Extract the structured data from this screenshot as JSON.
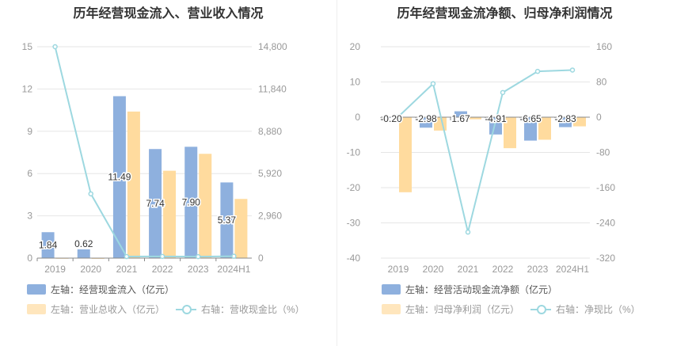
{
  "charts": [
    {
      "title": "历年经营现金流入、营业收入情况",
      "legend": {
        "bar1": "左轴：经营现金流入（亿元）",
        "bar2": "左轴：营业总收入（亿元）",
        "line": "右轴：营收现金比（%）"
      }
    },
    {
      "title": "历年经营现金流净额、归母净利润情况",
      "legend": {
        "bar1": "左轴：经营活动现金流净额（亿元）",
        "bar2": "左轴：归母净利润（亿元）",
        "line": "右轴：净现比（%）"
      }
    }
  ],
  "colors": {
    "bar1": "#8eb0de",
    "bar2": "#ffdb9e",
    "line": "#9dd8e0",
    "axis": "#999999",
    "grid": "#e6e6e6"
  },
  "chart_data": [
    {
      "type": "bar",
      "categories": [
        "2019",
        "2020",
        "2021",
        "2022",
        "2023",
        "2024H1"
      ],
      "series": [
        {
          "name": "左轴：经营现金流入（亿元）",
          "axis": "left",
          "values": [
            1.84,
            0.62,
            11.49,
            7.74,
            7.9,
            5.37
          ],
          "labels": [
            "1.84",
            "0.62",
            "11.49",
            "7.74",
            "7.90",
            "5.37"
          ]
        },
        {
          "name": "左轴：营业总收入（亿元）",
          "axis": "left",
          "values": [
            0.01,
            0.0045,
            10.4,
            6.2,
            7.4,
            4.2
          ]
        },
        {
          "name": "右轴：营收现金比（%）",
          "axis": "right",
          "type": "line",
          "values": [
            14800,
            4500,
            110,
            120,
            105,
            130
          ]
        }
      ],
      "ylim_left": [
        0,
        15
      ],
      "yticks_left": [
        "0",
        "3",
        "6",
        "9",
        "12",
        "15"
      ],
      "ylim_right": [
        0,
        14800
      ],
      "yticks_right": [
        "0",
        "2,960",
        "5,920",
        "8,880",
        "11,840",
        "14,800"
      ],
      "grid": true,
      "legend": "bottom"
    },
    {
      "type": "bar",
      "categories": [
        "2019",
        "2020",
        "2021",
        "2022",
        "2023",
        "2024H1"
      ],
      "series": [
        {
          "name": "左轴：经营活动现金流净额（亿元）",
          "axis": "left",
          "values": [
            -0.2,
            -2.98,
            1.67,
            -4.91,
            -6.65,
            -2.83
          ],
          "labels": [
            "-0.20",
            "-2.98",
            "1.67",
            "-4.91",
            "-6.65",
            "-2.83"
          ]
        },
        {
          "name": "左轴：归母净利润（亿元）",
          "axis": "left",
          "values": [
            -21.3,
            -3.8,
            -0.6,
            -8.8,
            -6.4,
            -2.6
          ]
        },
        {
          "name": "右轴：净现比（%）",
          "axis": "right",
          "type": "line",
          "values": [
            1,
            76,
            -261,
            56,
            104,
            107
          ]
        }
      ],
      "ylim_left": [
        -40,
        20
      ],
      "yticks_left": [
        "-40",
        "-30",
        "-20",
        "-10",
        "0",
        "10",
        "20"
      ],
      "ylim_right": [
        -320,
        160
      ],
      "yticks_right": [
        "-320",
        "-240",
        "-160",
        "-80",
        "0",
        "80",
        "160"
      ],
      "grid": true,
      "legend": "bottom"
    }
  ]
}
